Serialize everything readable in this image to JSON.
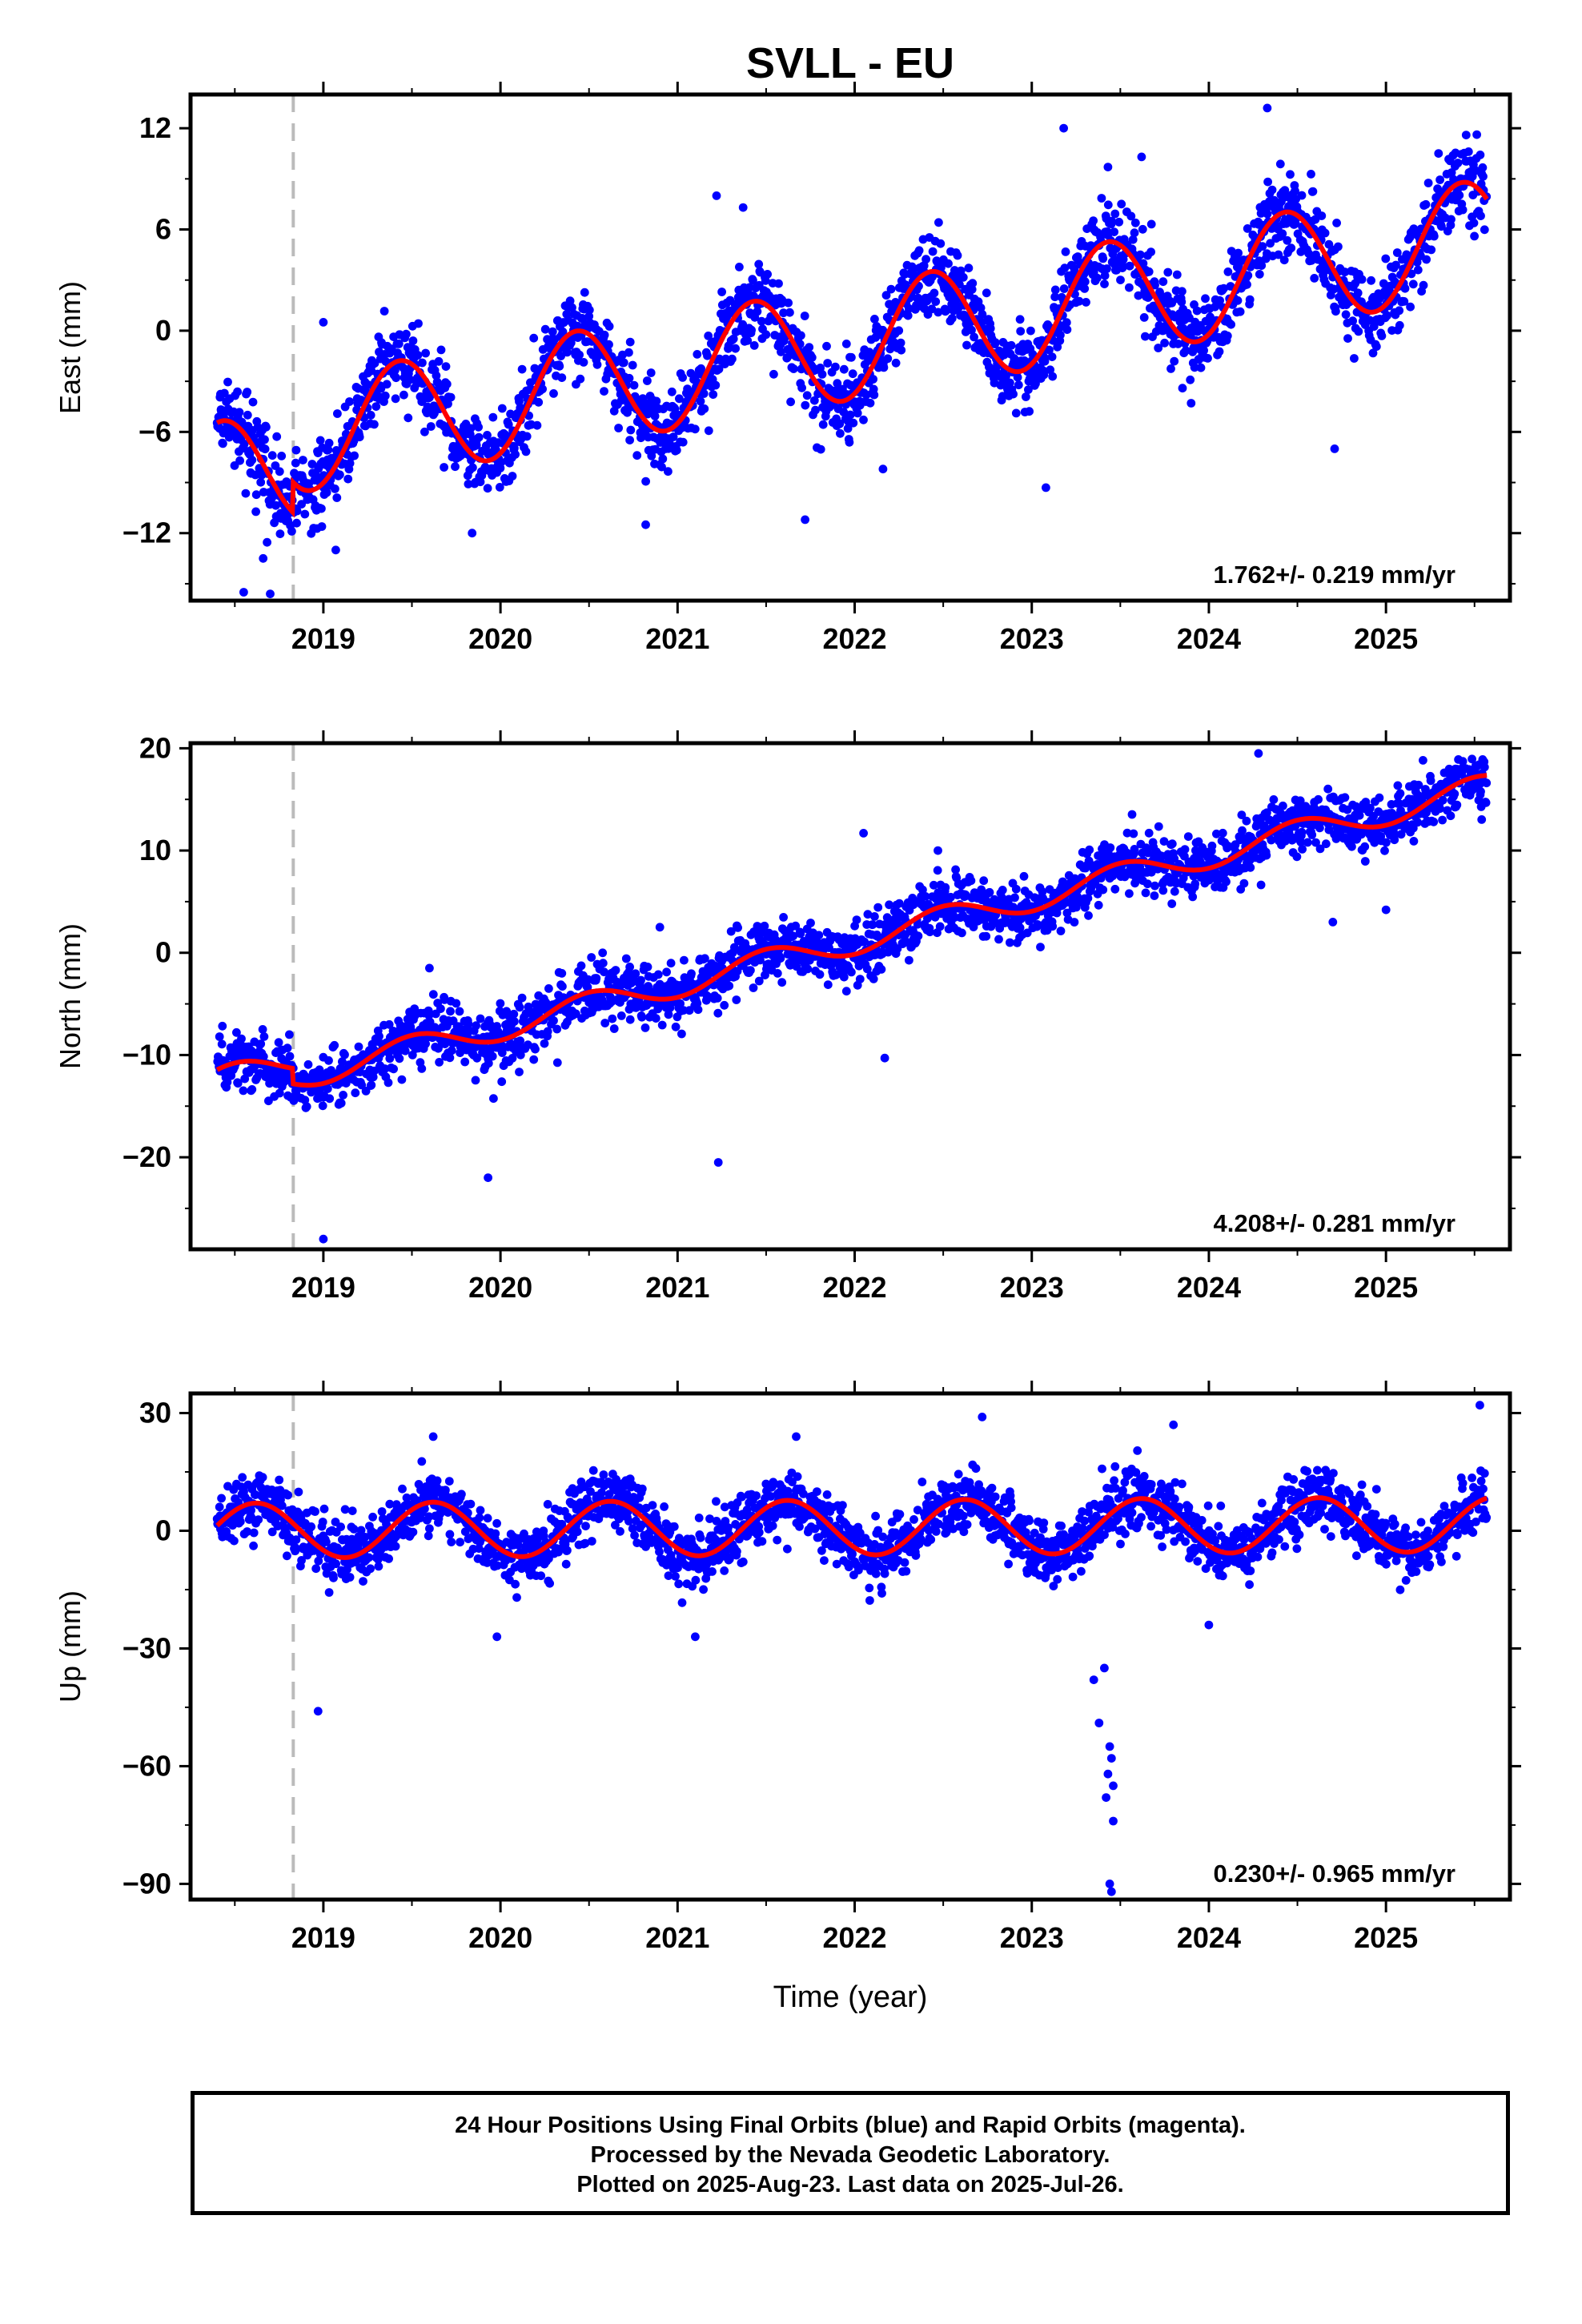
{
  "title": "SVLL - EU",
  "xlabel": "Time (year)",
  "footer": {
    "line1": "24 Hour Positions Using Final Orbits (blue) and Rapid Orbits (magenta).",
    "line2": "Processed by the Nevada Geodetic Laboratory.",
    "line3": "Plotted on 2025-Aug-23. Last data on 2025-Jul-26."
  },
  "colors": {
    "points": "#0000ff",
    "model": "#ff0000",
    "event_line": "#bbbbbb",
    "frame": "#000000"
  },
  "chart_data": [
    {
      "type": "scatter",
      "component": "east",
      "ylabel": "East (mm)",
      "xlim": [
        2018.25,
        2025.7
      ],
      "ylim": [
        -16,
        14
      ],
      "yticks": [
        -12,
        -6,
        0,
        6,
        12
      ],
      "xticks": [
        2019,
        2020,
        2021,
        2022,
        2023,
        2024,
        2025
      ],
      "event_line_x": 2018.83,
      "rate_label": "1.762+/- 0.219 mm/yr",
      "series": [
        {
          "role": "observed",
          "x_range": [
            2018.4,
            2025.57
          ],
          "trend_start": -7.0,
          "rate": 1.762,
          "annual_amplitude": 3.4,
          "annual_peak": 2019.43,
          "noise": 1.2,
          "outliers": [
            [
              2018.55,
              -15.5
            ],
            [
              2018.7,
              -15.6
            ],
            [
              2018.66,
              -13.5
            ],
            [
              2019.07,
              -13.0
            ],
            [
              2019.0,
              0.5
            ],
            [
              2019.84,
              -12.0
            ],
            [
              2020.82,
              -11.5
            ],
            [
              2021.72,
              -11.2
            ],
            [
              2021.22,
              8.0
            ],
            [
              2021.37,
              7.3
            ],
            [
              2022.16,
              -8.2
            ],
            [
              2023.08,
              -9.3
            ],
            [
              2023.18,
              12.0
            ],
            [
              2023.43,
              9.7
            ],
            [
              2023.62,
              10.3
            ],
            [
              2023.9,
              -4.3
            ],
            [
              2024.33,
              13.2
            ],
            [
              2024.71,
              -7.0
            ]
          ]
        },
        {
          "role": "model",
          "name": "model",
          "offset_at": 2018.83,
          "offset": 1.8
        }
      ]
    },
    {
      "type": "scatter",
      "component": "north",
      "ylabel": "North (mm)",
      "xlim": [
        2018.25,
        2025.7
      ],
      "ylim": [
        -29,
        20.5
      ],
      "yticks": [
        -20,
        -10,
        0,
        10,
        20
      ],
      "xticks": [
        2019,
        2020,
        2021,
        2022,
        2023,
        2024,
        2025
      ],
      "event_line_x": 2018.83,
      "rate_label": "4.208+/- 0.281 mm/yr",
      "series": [
        {
          "role": "observed",
          "x_range": [
            2018.4,
            2025.57
          ],
          "trend_start": -14.0,
          "rate": 4.208,
          "annual_amplitude": 1.3,
          "annual_peak": 2019.5,
          "noise": 1.4,
          "outliers": [
            [
              2019.0,
              -28.0
            ],
            [
              2019.93,
              -22.0
            ],
            [
              2021.23,
              -20.5
            ],
            [
              2022.17,
              -10.3
            ],
            [
              2022.05,
              11.7
            ],
            [
              2022.47,
              10.0
            ],
            [
              2024.28,
              19.5
            ],
            [
              2025.0,
              4.2
            ],
            [
              2024.7,
              3.0
            ],
            [
              2020.9,
              2.5
            ]
          ]
        },
        {
          "role": "model",
          "name": "model",
          "offset_at": 2018.83,
          "offset": -1.5
        }
      ]
    },
    {
      "type": "scatter",
      "component": "up",
      "ylabel": "Up (mm)",
      "xlim": [
        2018.25,
        2025.7
      ],
      "ylim": [
        -94,
        35
      ],
      "yticks": [
        -90,
        -60,
        -30,
        0,
        30
      ],
      "xticks": [
        2019,
        2020,
        2021,
        2022,
        2023,
        2024,
        2025
      ],
      "event_line_x": 2018.83,
      "rate_label": "0.230+/- 0.965 mm/yr",
      "series": [
        {
          "role": "observed",
          "x_range": [
            2018.4,
            2025.57
          ],
          "trend_start": 0.0,
          "rate": 0.23,
          "annual_amplitude": 7.0,
          "annual_peak": 2019.62,
          "noise": 4.0,
          "outliers": [
            [
              2018.97,
              -46.0
            ],
            [
              2023.35,
              -38.0
            ],
            [
              2023.38,
              -49.0
            ],
            [
              2023.41,
              -35.0
            ],
            [
              2023.44,
              -55.0
            ],
            [
              2023.45,
              -58.0
            ],
            [
              2023.43,
              -62.0
            ],
            [
              2023.46,
              -65.0
            ],
            [
              2023.42,
              -68.0
            ],
            [
              2023.46,
              -74.0
            ],
            [
              2023.44,
              -90.0
            ],
            [
              2023.45,
              -92.0
            ],
            [
              2025.53,
              32.0
            ],
            [
              2022.72,
              29.0
            ],
            [
              2023.8,
              27.0
            ],
            [
              2021.67,
              24.0
            ],
            [
              2019.62,
              24.0
            ],
            [
              2024.0,
              -24.0
            ],
            [
              2021.1,
              -27.0
            ],
            [
              2019.98,
              -27.0
            ]
          ]
        },
        {
          "role": "model",
          "name": "model",
          "offset_at": 2018.83,
          "offset": 0.0
        }
      ]
    }
  ]
}
